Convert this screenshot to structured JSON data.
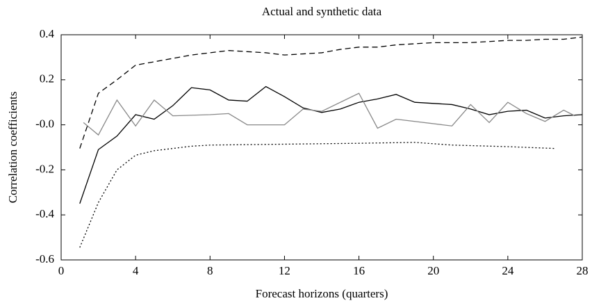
{
  "chart_data": {
    "type": "line",
    "title": "Actual and synthetic data",
    "xlabel": "Forecast horizons (quarters)",
    "ylabel": "Correlation coefficients",
    "xlim": [
      0,
      28
    ],
    "xticks": [
      0,
      4,
      8,
      12,
      16,
      20,
      24,
      28
    ],
    "ylim": [
      -0.6,
      0.4
    ],
    "yticks": [
      {
        "value": -0.6,
        "label": "-0.6"
      },
      {
        "value": -0.4,
        "label": "-0.4"
      },
      {
        "value": -0.2,
        "label": "-0.2"
      },
      {
        "value": 0,
        "label": "-0.0"
      },
      0.2,
      0.4
    ],
    "series": [
      {
        "color": "#000000",
        "dash": "8,5",
        "x": [
          1,
          2,
          3,
          4,
          5,
          6,
          7,
          8,
          9,
          10,
          11,
          12,
          13,
          14,
          15,
          16,
          17,
          18,
          19,
          20,
          21,
          22,
          23,
          24,
          25,
          26,
          27,
          28
        ],
        "values": [
          -0.105,
          0.14,
          0.2,
          0.265,
          0.28,
          0.295,
          0.31,
          0.32,
          0.33,
          0.325,
          0.32,
          0.31,
          0.315,
          0.32,
          0.335,
          0.345,
          0.345,
          0.355,
          0.36,
          0.365,
          0.365,
          0.365,
          0.37,
          0.375,
          0.375,
          0.38,
          0.38,
          0.39
        ]
      },
      {
        "color": "#000000",
        "dash": "none",
        "x": [
          1,
          2,
          3,
          4,
          5,
          6,
          7,
          8,
          9,
          10,
          11,
          12,
          13,
          14,
          15,
          16,
          17,
          18,
          19,
          20,
          21,
          22,
          23,
          24,
          25,
          26,
          27,
          28
        ],
        "values": [
          -0.35,
          -0.11,
          -0.05,
          0.045,
          0.025,
          0.085,
          0.165,
          0.155,
          0.11,
          0.105,
          0.17,
          0.125,
          0.075,
          0.055,
          0.07,
          0.1,
          0.115,
          0.135,
          0.1,
          0.095,
          0.09,
          0.07,
          0.045,
          0.06,
          0.065,
          0.03,
          0.04,
          0.045
        ]
      },
      {
        "color": "#888888",
        "dash": "none",
        "x": [
          1.2,
          2,
          3,
          4,
          5,
          6,
          8,
          9,
          10,
          12,
          13,
          14,
          16,
          17,
          18,
          21,
          22,
          23,
          24,
          25,
          26,
          27,
          27.6
        ],
        "values": [
          0.01,
          -0.045,
          0.11,
          -0.005,
          0.11,
          0.04,
          0.045,
          0.05,
          0,
          0,
          0.07,
          0.06,
          0.14,
          -0.015,
          0.025,
          -0.005,
          0.09,
          0.01,
          0.1,
          0.05,
          0.015,
          0.065,
          0.04
        ]
      },
      {
        "color": "#000000",
        "dash": "2,3",
        "x": [
          1,
          2,
          3,
          4,
          5,
          6,
          7,
          8,
          10,
          12,
          16,
          19,
          21,
          24,
          26.5
        ],
        "values": [
          -0.545,
          -0.345,
          -0.2,
          -0.135,
          -0.115,
          -0.105,
          -0.095,
          -0.09,
          -0.088,
          -0.086,
          -0.082,
          -0.078,
          -0.09,
          -0.097,
          -0.105
        ]
      }
    ]
  }
}
